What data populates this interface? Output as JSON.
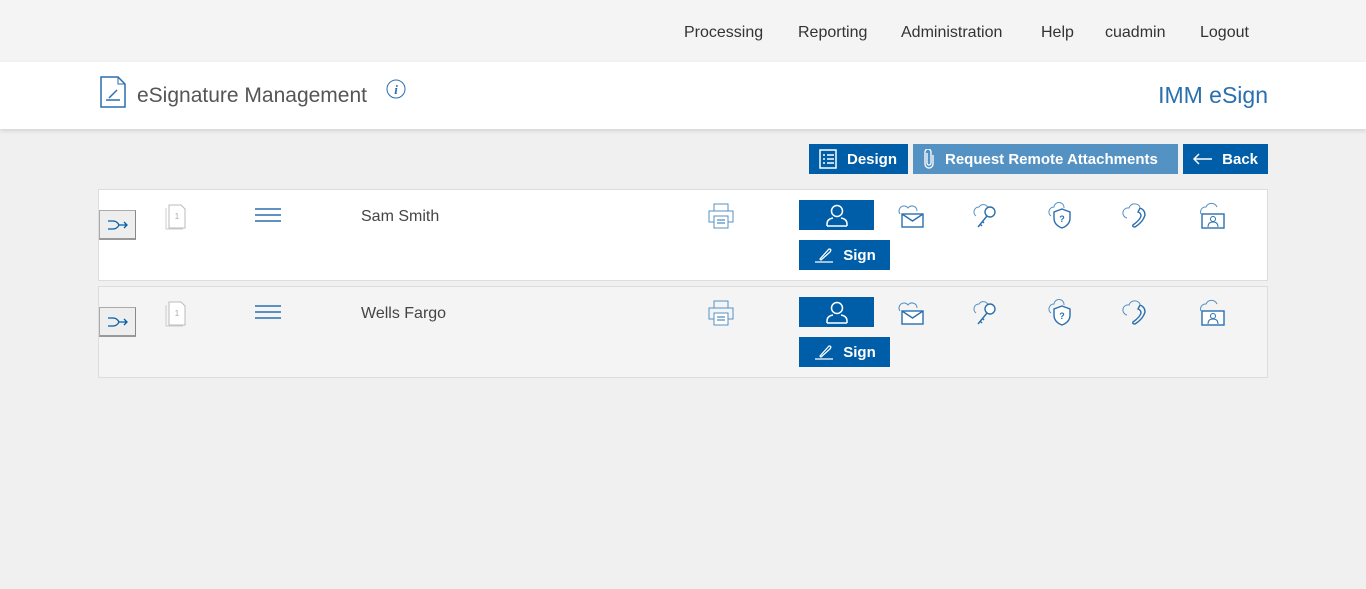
{
  "nav": [
    "Processing",
    "Reporting",
    "Administration",
    "Help",
    "cuadmin",
    "Logout"
  ],
  "header": {
    "title": "eSignature Management",
    "brand": "IMM eSign"
  },
  "toolbar": {
    "design": "Design",
    "request": "Request Remote Attachments",
    "back": "Back"
  },
  "rows": [
    {
      "name": "Sam Smith",
      "page": "1",
      "sign": "Sign"
    },
    {
      "name": "Wells Fargo",
      "page": "1",
      "sign": "Sign"
    }
  ],
  "colors": {
    "primary": "#005ea8",
    "secondary": "#5592c4"
  }
}
